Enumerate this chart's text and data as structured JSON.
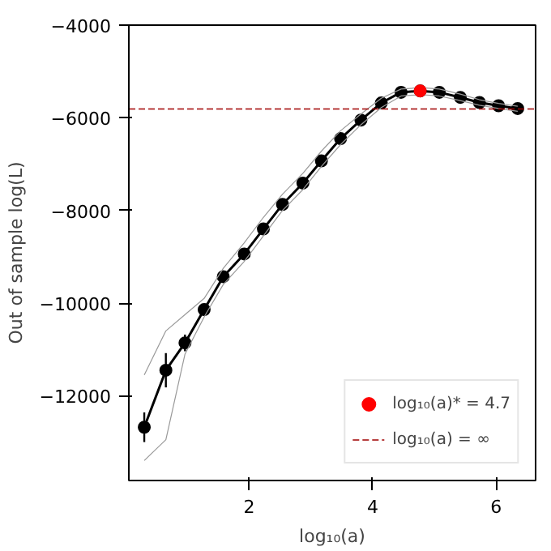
{
  "chart_data": {
    "type": "line",
    "xlabel": "log₁₀(a)",
    "ylabel": "Out of sample log(L)",
    "xlim": [
      0.05,
      6.64
    ],
    "ylim": [
      -13830,
      -4000
    ],
    "xticks": [
      2,
      4,
      6
    ],
    "yticks": [
      -12000,
      -10000,
      -8000,
      -6000,
      -4000
    ],
    "grid": false,
    "legend": "bottom right",
    "marker": "circle",
    "line_style": "solid",
    "series": [
      {
        "color": "#000000",
        "x": [
          0.3,
          0.65,
          0.96,
          1.27,
          1.58,
          1.92,
          2.23,
          2.54,
          2.87,
          3.17,
          3.48,
          3.81,
          4.14,
          4.46,
          4.77,
          5.08,
          5.42,
          5.73,
          6.04,
          6.35
        ],
        "values": [
          -12680,
          -11450,
          -10860,
          -10140,
          -9430,
          -8940,
          -8400,
          -7870,
          -7410,
          -6930,
          -6450,
          -6050,
          -5680,
          -5450,
          -5420,
          -5450,
          -5560,
          -5670,
          -5740,
          -5800
        ],
        "errors": [
          320,
          370,
          180,
          null,
          null,
          null,
          null,
          null,
          null,
          null,
          null,
          null,
          null,
          null,
          null,
          null,
          null,
          null,
          null,
          null
        ]
      },
      {
        "type": "line",
        "marker": "none",
        "color": "#999999",
        "x": [
          0.3,
          0.65,
          0.96,
          1.27,
          1.58,
          1.92,
          2.23,
          2.54,
          2.87,
          3.17,
          3.48,
          3.81,
          4.14,
          4.46,
          4.77,
          5.08,
          5.42,
          5.73,
          6.04,
          6.35
        ],
        "values": [
          -13400,
          -12950,
          -11100,
          -10300,
          -9600,
          -9100,
          -8550,
          -8000,
          -7550,
          -7050,
          -6580,
          -6150,
          -5780,
          -5530,
          -5500,
          -5530,
          -5630,
          -5730,
          -5800,
          -5860
        ]
      },
      {
        "type": "line",
        "marker": "none",
        "color": "#999999",
        "x": [
          0.3,
          0.65,
          0.96,
          1.27,
          1.58,
          1.92,
          2.23,
          2.54,
          2.87,
          3.17,
          3.48,
          3.81,
          4.14,
          4.46,
          4.77,
          5.08,
          5.42,
          5.73,
          6.04,
          6.35
        ],
        "values": [
          -11550,
          -10600,
          -10250,
          -9900,
          -9250,
          -8700,
          -8150,
          -7650,
          -7200,
          -6720,
          -6280,
          -5920,
          -5580,
          -5380,
          -5350,
          -5380,
          -5490,
          -5610,
          -5690,
          -5750
        ]
      },
      {
        "type": "scatter",
        "name": "log₁₀(a)* = 4.7",
        "color": "#ff0000",
        "x": [
          4.77
        ],
        "values": [
          -5420
        ]
      }
    ],
    "ref_lines": [
      {
        "axis": "y",
        "value": -5810,
        "label": "log₁₀(a) = ∞",
        "color": "#a00000",
        "line_style": "dashed"
      }
    ]
  }
}
